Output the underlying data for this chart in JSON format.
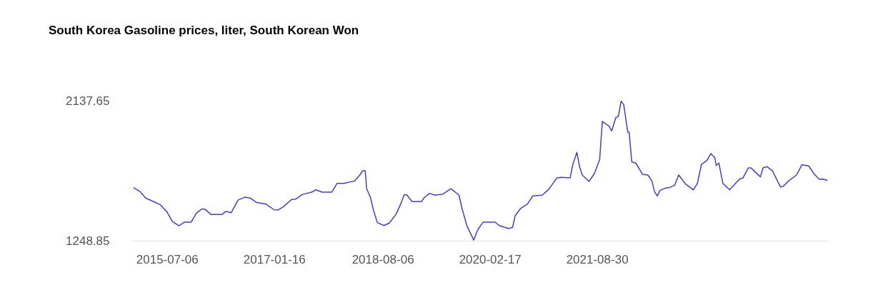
{
  "chart_data": {
    "type": "line",
    "title": "South Korea Gasoline prices, liter, South Korean Won",
    "x": [
      "2015-01-12",
      "2015-02-16",
      "2015-03-16",
      "2015-04-27",
      "2015-06-01",
      "2015-07-06",
      "2015-08-03",
      "2015-09-07",
      "2015-10-05",
      "2015-11-09",
      "2015-12-07",
      "2016-01-04",
      "2016-01-18",
      "2016-02-22",
      "2016-04-18",
      "2016-05-09",
      "2016-06-06",
      "2016-07-11",
      "2016-08-15",
      "2016-09-12",
      "2016-10-17",
      "2016-12-05",
      "2017-01-16",
      "2017-02-06",
      "2017-03-06",
      "2017-04-17",
      "2017-05-08",
      "2017-06-12",
      "2017-07-31",
      "2017-08-21",
      "2017-09-25",
      "2017-11-13",
      "2017-12-11",
      "2018-01-15",
      "2018-03-12",
      "2018-04-09",
      "2018-04-23",
      "2018-05-07",
      "2018-05-14",
      "2018-06-04",
      "2018-06-18",
      "2018-07-09",
      "2018-08-13",
      "2018-09-10",
      "2018-10-15",
      "2018-11-12",
      "2018-11-26",
      "2018-12-10",
      "2019-01-07",
      "2019-02-25",
      "2019-03-11",
      "2019-04-08",
      "2019-05-06",
      "2019-06-17",
      "2019-07-29",
      "2019-09-09",
      "2019-09-23",
      "2019-10-21",
      "2019-11-25",
      "2019-12-16",
      "2020-01-13",
      "2020-03-16",
      "2020-04-06",
      "2020-05-25",
      "2020-06-15",
      "2020-06-29",
      "2020-07-27",
      "2020-08-31",
      "2020-09-28",
      "2020-11-16",
      "2020-12-21",
      "2021-02-01",
      "2021-02-22",
      "2021-04-12",
      "2021-04-26",
      "2021-05-17",
      "2021-05-31",
      "2021-06-14",
      "2021-07-19",
      "2021-08-16",
      "2021-09-13",
      "2021-09-27",
      "2021-11-01",
      "2021-11-15",
      "2021-12-06",
      "2021-12-20",
      "2022-01-03",
      "2022-01-17",
      "2022-02-07",
      "2022-02-14",
      "2022-02-28",
      "2022-03-21",
      "2022-04-25",
      "2022-05-23",
      "2022-06-13",
      "2022-06-27",
      "2022-07-11",
      "2022-07-25",
      "2022-08-22",
      "2022-09-12",
      "2022-10-10",
      "2022-10-31",
      "2022-12-05",
      "2023-01-16",
      "2023-02-06",
      "2023-02-27",
      "2023-03-27",
      "2023-04-17",
      "2023-05-08",
      "2023-05-15",
      "2023-05-29",
      "2023-06-19",
      "2023-07-24",
      "2023-09-04",
      "2023-09-18",
      "2023-10-02",
      "2023-10-30",
      "2023-11-13",
      "2024-01-01",
      "2024-01-15",
      "2024-02-05",
      "2024-03-04",
      "2024-04-15",
      "2024-04-29",
      "2024-05-27",
      "2024-07-08",
      "2024-08-05",
      "2024-09-09",
      "2024-10-07",
      "2024-11-04",
      "2024-11-25",
      "2024-12-16"
    ],
    "values": [
      1586,
      1560,
      1520,
      1497,
      1477,
      1432,
      1371,
      1344,
      1367,
      1367,
      1424,
      1450,
      1450,
      1415,
      1415,
      1435,
      1427,
      1507,
      1525,
      1520,
      1491,
      1481,
      1445,
      1444,
      1465,
      1511,
      1512,
      1542,
      1557,
      1572,
      1557,
      1557,
      1613,
      1613,
      1628,
      1666,
      1693,
      1693,
      1580,
      1522,
      1447,
      1364,
      1345,
      1361,
      1417,
      1492,
      1540,
      1540,
      1497,
      1497,
      1522,
      1550,
      1538,
      1545,
      1579,
      1538,
      1462,
      1341,
      1253,
      1318,
      1367,
      1367,
      1345,
      1326,
      1334,
      1409,
      1454,
      1481,
      1533,
      1538,
      1575,
      1647,
      1651,
      1648,
      1734,
      1810,
      1719,
      1666,
      1625,
      1674,
      1764,
      2006,
      1976,
      1946,
      2029,
      2039,
      2135,
      2112,
      1938,
      1938,
      1749,
      1742,
      1671,
      1666,
      1628,
      1560,
      1533,
      1568,
      1583,
      1586,
      1601,
      1666,
      1610,
      1571,
      1613,
      1734,
      1757,
      1802,
      1776,
      1726,
      1742,
      1613,
      1572,
      1628,
      1643,
      1647,
      1711,
      1711,
      1654,
      1711,
      1719,
      1693,
      1590,
      1594,
      1628,
      1666,
      1731,
      1724,
      1674,
      1639,
      1640,
      1631
    ],
    "color": "#3f3fd6",
    "xlim": [
      "2015-01-05",
      "2024-12-23"
    ],
    "xticks": [
      "2015-07-06",
      "2017-01-16",
      "2018-08-06",
      "2020-02-17",
      "2021-08-30"
    ],
    "ylim": [
      1248.85,
      2137.65
    ],
    "yticks": [
      1248.85,
      2137.65
    ]
  }
}
